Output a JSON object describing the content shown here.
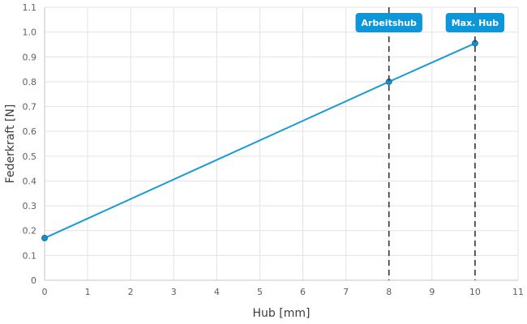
{
  "chart_data": {
    "type": "line",
    "title": "",
    "xlabel": "Hub [mm]",
    "ylabel": "Federkraft [N]",
    "xlim": [
      0,
      11
    ],
    "ylim": [
      0,
      1.1
    ],
    "xticks": [
      "0",
      "1",
      "2",
      "3",
      "4",
      "5",
      "6",
      "7",
      "8",
      "9",
      "10",
      "11"
    ],
    "yticks": [
      "0",
      "0.1",
      "0.2",
      "0.3",
      "0.4",
      "0.5",
      "0.6",
      "0.7",
      "0.8",
      "0.9",
      "1.0",
      "1.1"
    ],
    "grid": true,
    "series": [
      {
        "x": [
          0,
          8,
          10
        ],
        "y": [
          0.17,
          0.8,
          0.955
        ],
        "color": "#1b9bd6"
      }
    ],
    "markers": [
      {
        "label": "Arbeitshub",
        "x": 8
      },
      {
        "label": "Max. Hub",
        "x": 10
      }
    ]
  }
}
